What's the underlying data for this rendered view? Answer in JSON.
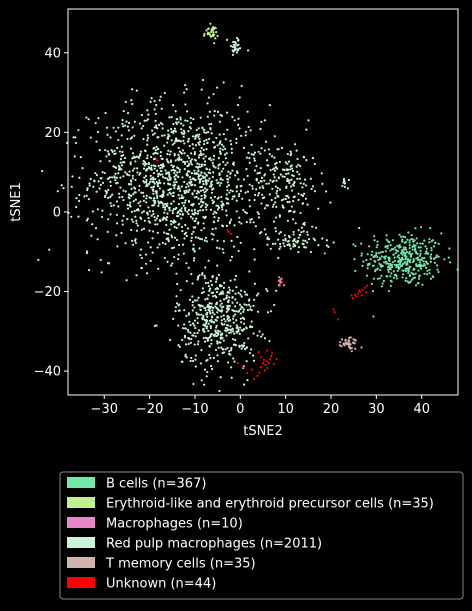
{
  "chart_data": {
    "type": "scatter",
    "title": "",
    "xlabel": "tSNE2",
    "ylabel": "tSNE1",
    "xlim": [
      -38,
      48
    ],
    "ylim": [
      -46,
      51
    ],
    "xticks": [
      -30,
      -20,
      -10,
      0,
      10,
      20,
      30,
      40
    ],
    "yticks": [
      -40,
      -20,
      0,
      20,
      40
    ],
    "grid": false,
    "legend_position": "below",
    "background": "#000000",
    "series": [
      {
        "name": "B cells (n=367)",
        "color": "#6fe8a8",
        "clusters": [
          {
            "x": 36,
            "y": -12,
            "sx": 4.3,
            "sy": 3.4,
            "n": 367
          }
        ]
      },
      {
        "name": "Erythroid-like and erythroid precursor cells (n=35)",
        "color": "#c2f08e",
        "clusters": [
          {
            "x": -6.5,
            "y": 45,
            "sx": 0.8,
            "sy": 0.9,
            "n": 35
          }
        ]
      },
      {
        "name": "Macrophages (n=10)",
        "color": "#e886c6",
        "clusters": [
          {
            "x": 8.8,
            "y": -17.5,
            "sx": 0.3,
            "sy": 0.8,
            "n": 10
          }
        ]
      },
      {
        "name": "Red pulp macrophages (n=2011)",
        "color": "#c8f5d6",
        "clusters": [
          {
            "x": -14,
            "y": 8,
            "sx": 9.5,
            "sy": 9.5,
            "n": 1250
          },
          {
            "x": -5,
            "y": -27,
            "sx": 4.5,
            "sy": 6.2,
            "n": 470
          },
          {
            "x": 10,
            "y": 7,
            "sx": 3.8,
            "sy": 5.5,
            "n": 180
          },
          {
            "x": 11,
            "y": -7.5,
            "sx": 4.2,
            "sy": 1.6,
            "n": 70
          },
          {
            "x": -1,
            "y": 41.5,
            "sx": 0.9,
            "sy": 1.1,
            "n": 30
          },
          {
            "x": 23,
            "y": 7.5,
            "sx": 0.4,
            "sy": 0.9,
            "n": 11
          }
        ]
      },
      {
        "name": "T memory cells (n=35)",
        "color": "#d2b4ae",
        "clusters": [
          {
            "x": 24.2,
            "y": -33,
            "sx": 1.0,
            "sy": 0.8,
            "n": 35
          }
        ]
      },
      {
        "name": "Unknown (n=44)",
        "color": "#ff0000",
        "points": [
          [
            -18.5,
            13.2
          ],
          [
            -2.5,
            -5
          ],
          [
            -2,
            -5.5
          ],
          [
            9.3,
            -17.8
          ],
          [
            20.5,
            -24.5
          ],
          [
            21.5,
            -27
          ],
          [
            24.5,
            -21
          ],
          [
            25.3,
            -20.8
          ],
          [
            26,
            -20.5
          ],
          [
            26.5,
            -20
          ],
          [
            27,
            -19.5
          ],
          [
            27.5,
            -19
          ],
          [
            28,
            -18.5
          ],
          [
            26.8,
            -21
          ],
          [
            5,
            -38
          ],
          [
            5.5,
            -38.5
          ],
          [
            5.8,
            -37.5
          ],
          [
            6.2,
            -38
          ],
          [
            4.5,
            -39
          ],
          [
            6.5,
            -37
          ],
          [
            3,
            -42
          ],
          [
            4.6,
            -36.5
          ],
          [
            6,
            -39.2
          ],
          [
            5.2,
            -37.2
          ],
          [
            7,
            -35.5
          ],
          [
            4,
            -35.2
          ],
          [
            0.5,
            -39
          ],
          [
            -0.5,
            -38
          ],
          [
            1.5,
            -40.5
          ],
          [
            3.8,
            -41.2
          ],
          [
            5.4,
            -39.8
          ],
          [
            7.4,
            -38.2
          ],
          [
            6.8,
            -36.2
          ],
          [
            5.9,
            -34.8
          ],
          [
            4.2,
            -40.4
          ],
          [
            2.6,
            -39.6
          ],
          [
            8,
            -37
          ],
          [
            26.2,
            -19.8
          ],
          [
            25.6,
            -21.3
          ],
          [
            27.8,
            -20.2
          ],
          [
            24.8,
            -21.7
          ],
          [
            20.8,
            -25.2
          ],
          [
            -18.2,
            12.8
          ],
          [
            -2.8,
            -4.6
          ]
        ]
      }
    ]
  }
}
